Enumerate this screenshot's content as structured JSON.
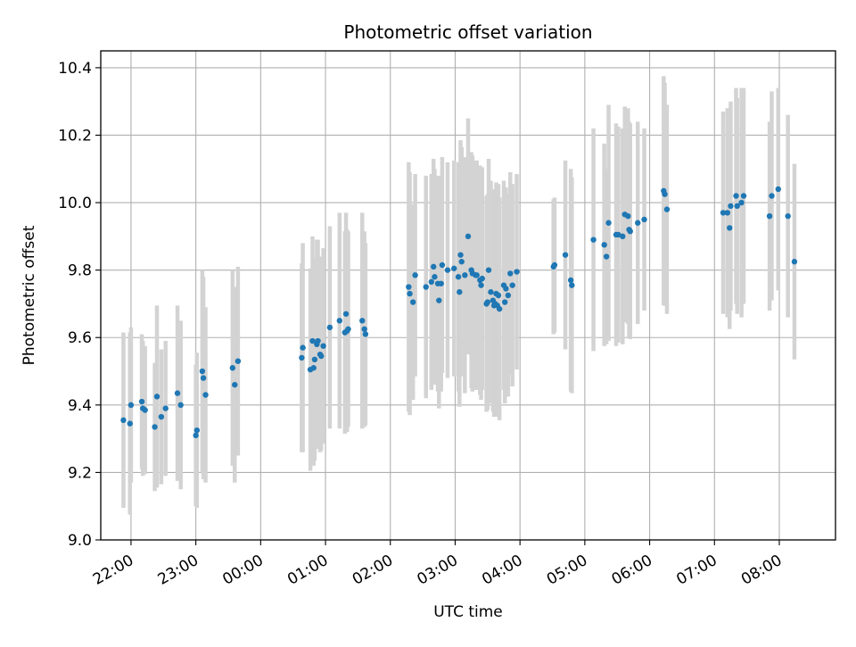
{
  "chart_data": {
    "type": "scatter",
    "title": "Photometric offset variation",
    "xlabel": "UTC time",
    "ylabel": "Photometric offset",
    "xlim": [
      "21:32",
      "08:52"
    ],
    "ylim": [
      9.0,
      10.45
    ],
    "x_ticks": [
      "22:00",
      "23:00",
      "00:00",
      "01:00",
      "02:00",
      "03:00",
      "04:00",
      "05:00",
      "06:00",
      "07:00",
      "08:00"
    ],
    "y_ticks": [
      "9.0",
      "9.2",
      "9.4",
      "9.6",
      "9.8",
      "10.0",
      "10.2",
      "10.4"
    ],
    "grid": true,
    "legend": "none",
    "colors": {
      "points": "#1f77b4",
      "errorbars": "#d3d3d3",
      "grid": "#b0b0b0"
    },
    "series": [
      {
        "points": [
          {
            "x": "21:53",
            "y": 9.355,
            "err": 0.26
          },
          {
            "x": "21:59",
            "y": 9.345,
            "err": 0.27
          },
          {
            "x": "22:00",
            "y": 9.4,
            "err": 0.23
          },
          {
            "x": "22:10",
            "y": 9.41,
            "err": 0.2
          },
          {
            "x": "22:11",
            "y": 9.39,
            "err": 0.2
          },
          {
            "x": "22:13",
            "y": 9.385,
            "err": 0.19
          },
          {
            "x": "22:22",
            "y": 9.335,
            "err": 0.19
          },
          {
            "x": "22:24",
            "y": 9.425,
            "err": 0.27
          },
          {
            "x": "22:28",
            "y": 9.365,
            "err": 0.2
          },
          {
            "x": "22:32",
            "y": 9.39,
            "err": 0.2
          },
          {
            "x": "22:43",
            "y": 9.435,
            "err": 0.26
          },
          {
            "x": "22:46",
            "y": 9.4,
            "err": 0.25
          },
          {
            "x": "23:00",
            "y": 9.31,
            "err": 0.21
          },
          {
            "x": "23:01",
            "y": 9.325,
            "err": 0.23
          },
          {
            "x": "23:06",
            "y": 9.5,
            "err": 0.3
          },
          {
            "x": "23:07",
            "y": 9.48,
            "err": 0.3
          },
          {
            "x": "23:09",
            "y": 9.43,
            "err": 0.26
          },
          {
            "x": "23:34",
            "y": 9.51,
            "err": 0.29
          },
          {
            "x": "23:36",
            "y": 9.46,
            "err": 0.29
          },
          {
            "x": "23:39",
            "y": 9.53,
            "err": 0.28
          },
          {
            "x": "00:38",
            "y": 9.54,
            "err": 0.28
          },
          {
            "x": "00:39",
            "y": 9.57,
            "err": 0.31
          },
          {
            "x": "00:46",
            "y": 9.505,
            "err": 0.3
          },
          {
            "x": "00:48",
            "y": 9.59,
            "err": 0.31
          },
          {
            "x": "00:49",
            "y": 9.51,
            "err": 0.29
          },
          {
            "x": "00:50",
            "y": 9.535,
            "err": 0.3
          },
          {
            "x": "00:52",
            "y": 9.58,
            "err": 0.31
          },
          {
            "x": "00:53",
            "y": 9.59,
            "err": 0.3
          },
          {
            "x": "00:55",
            "y": 9.55,
            "err": 0.29
          },
          {
            "x": "00:56",
            "y": 9.545,
            "err": 0.28
          },
          {
            "x": "00:58",
            "y": 9.575,
            "err": 0.29
          },
          {
            "x": "01:04",
            "y": 9.63,
            "err": 0.3
          },
          {
            "x": "01:13",
            "y": 9.65,
            "err": 0.32
          },
          {
            "x": "01:18",
            "y": 9.615,
            "err": 0.3
          },
          {
            "x": "01:19",
            "y": 9.67,
            "err": 0.3
          },
          {
            "x": "01:20",
            "y": 9.62,
            "err": 0.3
          },
          {
            "x": "01:21",
            "y": 9.625,
            "err": 0.29
          },
          {
            "x": "01:34",
            "y": 9.65,
            "err": 0.32
          },
          {
            "x": "01:36",
            "y": 9.625,
            "err": 0.29
          },
          {
            "x": "01:37",
            "y": 9.61,
            "err": 0.27
          },
          {
            "x": "02:17",
            "y": 9.75,
            "err": 0.37
          },
          {
            "x": "02:18",
            "y": 9.73,
            "err": 0.36
          },
          {
            "x": "02:21",
            "y": 9.705,
            "err": 0.29
          },
          {
            "x": "02:23",
            "y": 9.785,
            "err": 0.3
          },
          {
            "x": "02:33",
            "y": 9.75,
            "err": 0.33
          },
          {
            "x": "02:38",
            "y": 9.765,
            "err": 0.32
          },
          {
            "x": "02:40",
            "y": 9.81,
            "err": 0.32
          },
          {
            "x": "02:41",
            "y": 9.78,
            "err": 0.32
          },
          {
            "x": "02:44",
            "y": 9.76,
            "err": 0.32
          },
          {
            "x": "02:45",
            "y": 9.71,
            "err": 0.32
          },
          {
            "x": "02:47",
            "y": 9.76,
            "err": 0.32
          },
          {
            "x": "02:48",
            "y": 9.815,
            "err": 0.32
          },
          {
            "x": "02:53",
            "y": 9.8,
            "err": 0.32
          },
          {
            "x": "02:59",
            "y": 9.805,
            "err": 0.32
          },
          {
            "x": "03:03",
            "y": 9.78,
            "err": 0.34
          },
          {
            "x": "03:04",
            "y": 9.735,
            "err": 0.34
          },
          {
            "x": "03:05",
            "y": 9.845,
            "err": 0.34
          },
          {
            "x": "03:06",
            "y": 9.825,
            "err": 0.34
          },
          {
            "x": "03:09",
            "y": 9.785,
            "err": 0.35
          },
          {
            "x": "03:12",
            "y": 9.9,
            "err": 0.35
          },
          {
            "x": "03:15",
            "y": 9.8,
            "err": 0.35
          },
          {
            "x": "03:16",
            "y": 9.79,
            "err": 0.35
          },
          {
            "x": "03:19",
            "y": 9.785,
            "err": 0.34
          },
          {
            "x": "03:20",
            "y": 9.785,
            "err": 0.34
          },
          {
            "x": "03:23",
            "y": 9.77,
            "err": 0.34
          },
          {
            "x": "03:24",
            "y": 9.755,
            "err": 0.34
          },
          {
            "x": "03:25",
            "y": 9.775,
            "err": 0.33
          },
          {
            "x": "03:29",
            "y": 9.7,
            "err": 0.32
          },
          {
            "x": "03:30",
            "y": 9.705,
            "err": 0.32
          },
          {
            "x": "03:31",
            "y": 9.8,
            "err": 0.33
          },
          {
            "x": "03:33",
            "y": 9.735,
            "err": 0.33
          },
          {
            "x": "03:35",
            "y": 9.71,
            "err": 0.33
          },
          {
            "x": "03:36",
            "y": 9.695,
            "err": 0.33
          },
          {
            "x": "03:37",
            "y": 9.7,
            "err": 0.33
          },
          {
            "x": "03:38",
            "y": 9.73,
            "err": 0.33
          },
          {
            "x": "03:39",
            "y": 9.695,
            "err": 0.33
          },
          {
            "x": "03:40",
            "y": 9.725,
            "err": 0.33
          },
          {
            "x": "03:41",
            "y": 9.685,
            "err": 0.33
          },
          {
            "x": "03:45",
            "y": 9.755,
            "err": 0.31
          },
          {
            "x": "03:46",
            "y": 9.705,
            "err": 0.3
          },
          {
            "x": "03:47",
            "y": 9.745,
            "err": 0.3
          },
          {
            "x": "03:49",
            "y": 9.725,
            "err": 0.3
          },
          {
            "x": "03:51",
            "y": 9.79,
            "err": 0.3
          },
          {
            "x": "03:53",
            "y": 9.755,
            "err": 0.3
          },
          {
            "x": "03:57",
            "y": 9.795,
            "err": 0.29
          },
          {
            "x": "04:31",
            "y": 9.81,
            "err": 0.2
          },
          {
            "x": "04:32",
            "y": 9.815,
            "err": 0.2
          },
          {
            "x": "04:42",
            "y": 9.845,
            "err": 0.28
          },
          {
            "x": "04:47",
            "y": 9.77,
            "err": 0.33
          },
          {
            "x": "04:48",
            "y": 9.755,
            "err": 0.32
          },
          {
            "x": "05:08",
            "y": 9.89,
            "err": 0.33
          },
          {
            "x": "05:18",
            "y": 9.875,
            "err": 0.3
          },
          {
            "x": "05:20",
            "y": 9.84,
            "err": 0.26
          },
          {
            "x": "05:22",
            "y": 9.94,
            "err": 0.35
          },
          {
            "x": "05:29",
            "y": 9.905,
            "err": 0.33
          },
          {
            "x": "05:31",
            "y": 9.905,
            "err": 0.32
          },
          {
            "x": "05:35",
            "y": 9.9,
            "err": 0.32
          },
          {
            "x": "05:37",
            "y": 9.965,
            "err": 0.32
          },
          {
            "x": "05:40",
            "y": 9.96,
            "err": 0.32
          },
          {
            "x": "05:41",
            "y": 9.92,
            "err": 0.32
          },
          {
            "x": "05:42",
            "y": 9.915,
            "err": 0.32
          },
          {
            "x": "05:49",
            "y": 9.94,
            "err": 0.3
          },
          {
            "x": "05:55",
            "y": 9.95,
            "err": 0.27
          },
          {
            "x": "06:13",
            "y": 10.035,
            "err": 0.34
          },
          {
            "x": "06:14",
            "y": 10.025,
            "err": 0.33
          },
          {
            "x": "06:16",
            "y": 9.98,
            "err": 0.31
          },
          {
            "x": "07:08",
            "y": 9.97,
            "err": 0.3
          },
          {
            "x": "07:12",
            "y": 9.97,
            "err": 0.31
          },
          {
            "x": "07:14",
            "y": 9.925,
            "err": 0.3
          },
          {
            "x": "07:15",
            "y": 9.99,
            "err": 0.31
          },
          {
            "x": "07:20",
            "y": 10.02,
            "err": 0.32
          },
          {
            "x": "07:21",
            "y": 9.99,
            "err": 0.32
          },
          {
            "x": "07:25",
            "y": 10.0,
            "err": 0.34
          },
          {
            "x": "07:27",
            "y": 10.02,
            "err": 0.32
          },
          {
            "x": "07:51",
            "y": 9.96,
            "err": 0.28
          },
          {
            "x": "07:53",
            "y": 10.02,
            "err": 0.31
          },
          {
            "x": "07:59",
            "y": 10.04,
            "err": 0.3
          },
          {
            "x": "08:08",
            "y": 9.96,
            "err": 0.3
          },
          {
            "x": "08:14",
            "y": 9.825,
            "err": 0.29
          }
        ]
      }
    ]
  }
}
